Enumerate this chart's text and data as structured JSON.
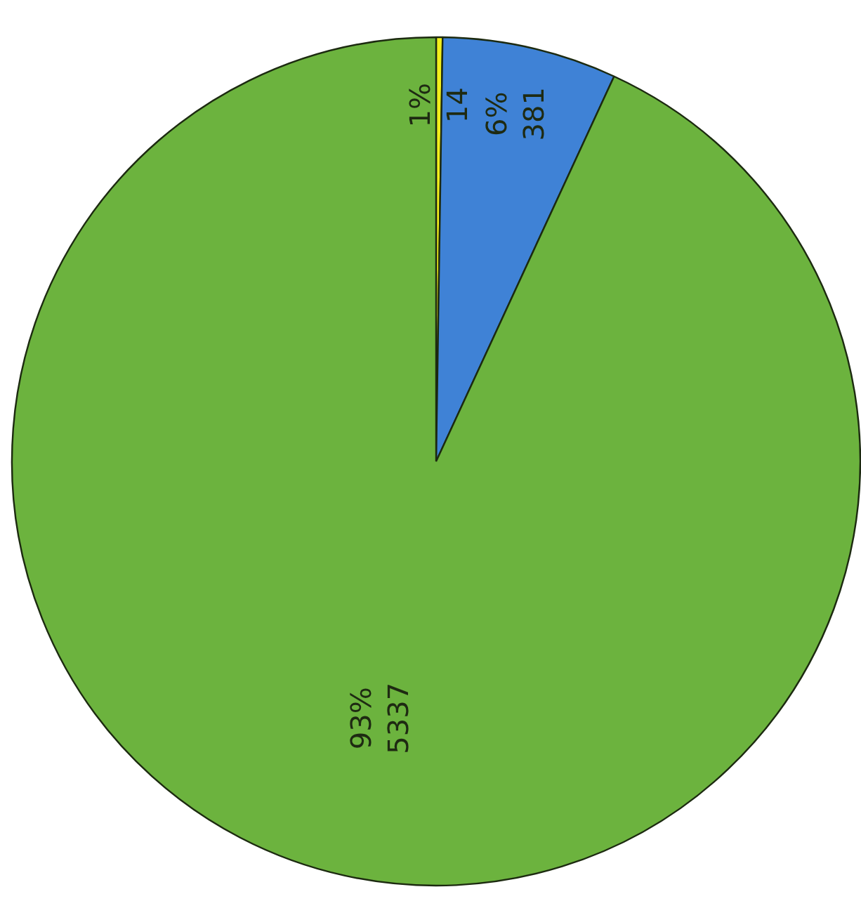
{
  "chart_data": {
    "type": "pie",
    "categories": [
      null,
      null,
      null
    ],
    "values": [
      14,
      381,
      5337
    ],
    "colors": [
      "#f2ee1c",
      "#3f82d6",
      "#6cb33e"
    ],
    "value_labels": [
      "1%\n14",
      "6%\n381",
      "93%\n5337"
    ]
  }
}
